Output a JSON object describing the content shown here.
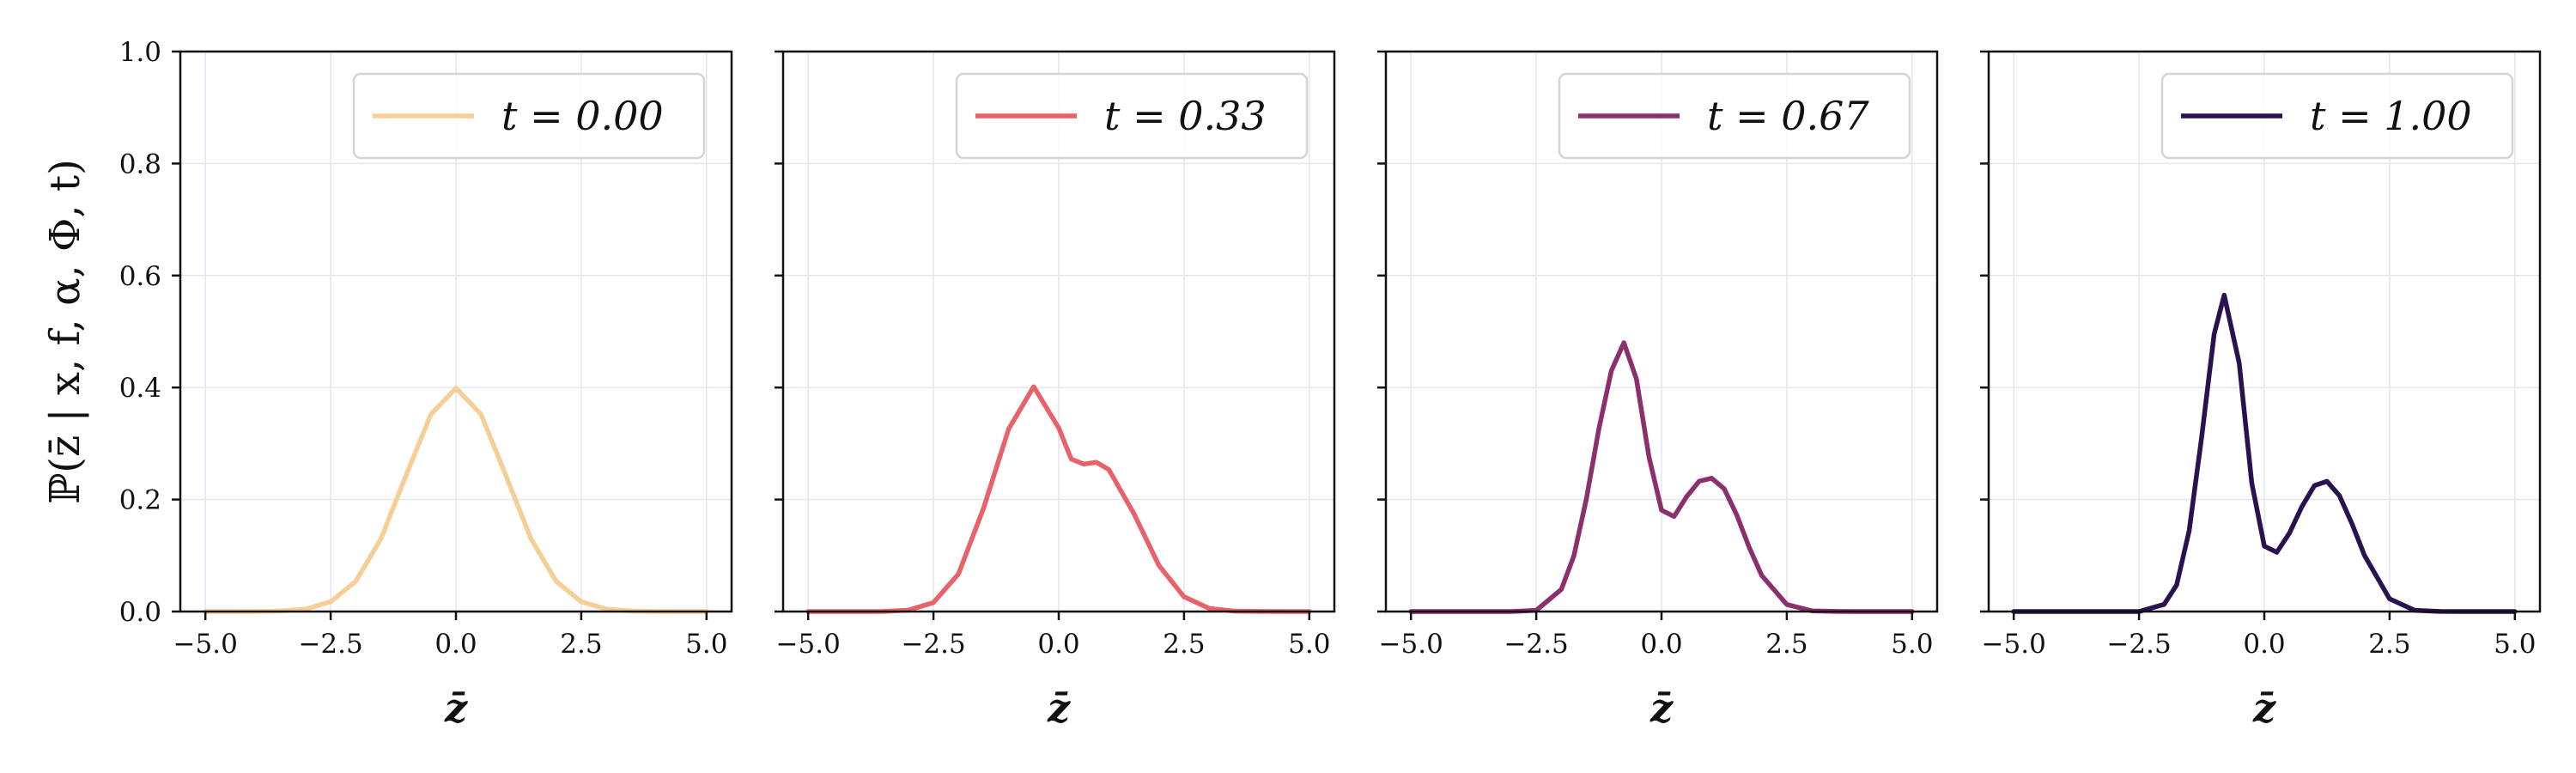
{
  "chart_data": [
    {
      "type": "line",
      "xlabel": "z̄",
      "ylabel": "ℙ(z̄ | x, f, α, Φ, t)",
      "xlim": [
        -5.5,
        5.5
      ],
      "ylim": [
        0.0,
        1.0
      ],
      "xticks": [
        "−5.0",
        "−2.5",
        "0.0",
        "2.5",
        "5.0"
      ],
      "yticks": [
        "0.0",
        "0.2",
        "0.4",
        "0.6",
        "0.8",
        "1.0"
      ],
      "grid": true,
      "legend_position": "top-right",
      "series": [
        {
          "name": "t = 0.00",
          "color": "#f6cf96",
          "x": [
            -5,
            -4.5,
            -4,
            -3.5,
            -3,
            -2.5,
            -2,
            -1.5,
            -1,
            -0.5,
            0,
            0.5,
            1,
            1.5,
            2,
            2.5,
            3,
            3.5,
            4,
            4.5,
            5
          ],
          "y": [
            0.0,
            0.0,
            0.0001,
            0.0009,
            0.0044,
            0.0175,
            0.054,
            0.1295,
            0.242,
            0.3521,
            0.399,
            0.3521,
            0.242,
            0.1295,
            0.054,
            0.0175,
            0.0044,
            0.0009,
            0.0001,
            0.0,
            0.0
          ]
        }
      ]
    },
    {
      "type": "line",
      "xlabel": "z̄",
      "xlim": [
        -5.5,
        5.5
      ],
      "ylim": [
        0.0,
        1.0
      ],
      "xticks": [
        "−5.0",
        "−2.5",
        "0.0",
        "2.5",
        "5.0"
      ],
      "grid": true,
      "legend_position": "top-right",
      "series": [
        {
          "name": "t = 0.33",
          "color": "#e8626a",
          "x": [
            -5,
            -4.5,
            -4,
            -3.5,
            -3,
            -2.5,
            -2,
            -1.5,
            -1,
            -0.5,
            0,
            0.25,
            0.5,
            0.75,
            1,
            1.5,
            2,
            2.5,
            3,
            3.5,
            4,
            4.5,
            5
          ],
          "y": [
            0.0,
            0.0,
            0.0,
            0.0002,
            0.0025,
            0.016,
            0.0672,
            0.1848,
            0.3256,
            0.4015,
            0.3279,
            0.2721,
            0.2633,
            0.2666,
            0.2533,
            0.175,
            0.0822,
            0.0264,
            0.0057,
            0.0008,
            0.0001,
            0.0,
            0.0
          ]
        }
      ]
    },
    {
      "type": "line",
      "xlabel": "z̄",
      "xlim": [
        -5.5,
        5.5
      ],
      "ylim": [
        0.0,
        1.0
      ],
      "xticks": [
        "−5.0",
        "−2.5",
        "0.0",
        "2.5",
        "5.0"
      ],
      "grid": true,
      "legend_position": "top-right",
      "series": [
        {
          "name": "t = 0.67",
          "color": "#8b2f6e",
          "x": [
            -5,
            -4.5,
            -4,
            -3.5,
            -3,
            -2.5,
            -2,
            -1.75,
            -1.5,
            -1.25,
            -1,
            -0.75,
            -0.5,
            -0.25,
            0,
            0.25,
            0.5,
            0.75,
            1,
            1.25,
            1.5,
            1.75,
            2,
            2.5,
            3,
            3.5,
            4,
            4.5,
            5
          ],
          "y": [
            0.0,
            0.0,
            0.0,
            0.0,
            0.0,
            0.0022,
            0.0394,
            0.0992,
            0.2011,
            0.3257,
            0.43,
            0.48,
            0.415,
            0.2761,
            0.1811,
            0.1698,
            0.2049,
            0.2326,
            0.238,
            0.2192,
            0.1729,
            0.1145,
            0.0644,
            0.0126,
            0.0012,
            0.0001,
            0.0,
            0.0,
            0.0
          ]
        }
      ]
    },
    {
      "type": "line",
      "xlabel": "z̄",
      "xlim": [
        -5.5,
        5.5
      ],
      "ylim": [
        0.0,
        1.0
      ],
      "xticks": [
        "−5.0",
        "−2.5",
        "0.0",
        "2.5",
        "5.0"
      ],
      "grid": true,
      "legend_position": "top-right",
      "series": [
        {
          "name": "t = 1.00",
          "color": "#2a1150",
          "x": [
            -5,
            -4.5,
            -4,
            -3.5,
            -3,
            -2.5,
            -2,
            -1.75,
            -1.5,
            -1.25,
            -1,
            -0.8,
            -0.5,
            -0.25,
            0,
            0.25,
            0.5,
            0.75,
            1,
            1.25,
            1.5,
            1.75,
            2,
            2.5,
            3,
            3.5,
            4,
            4.5,
            5
          ],
          "y": [
            0.0,
            0.0,
            0.0,
            0.0,
            0.0,
            0.0,
            0.0128,
            0.0474,
            0.1443,
            0.3109,
            0.4954,
            0.565,
            0.4432,
            0.2295,
            0.1168,
            0.1059,
            0.1399,
            0.1874,
            0.2248,
            0.2325,
            0.2069,
            0.1569,
            0.1002,
            0.0227,
            0.0021,
            0.0001,
            0.0,
            0.0,
            0.0
          ]
        }
      ]
    }
  ]
}
